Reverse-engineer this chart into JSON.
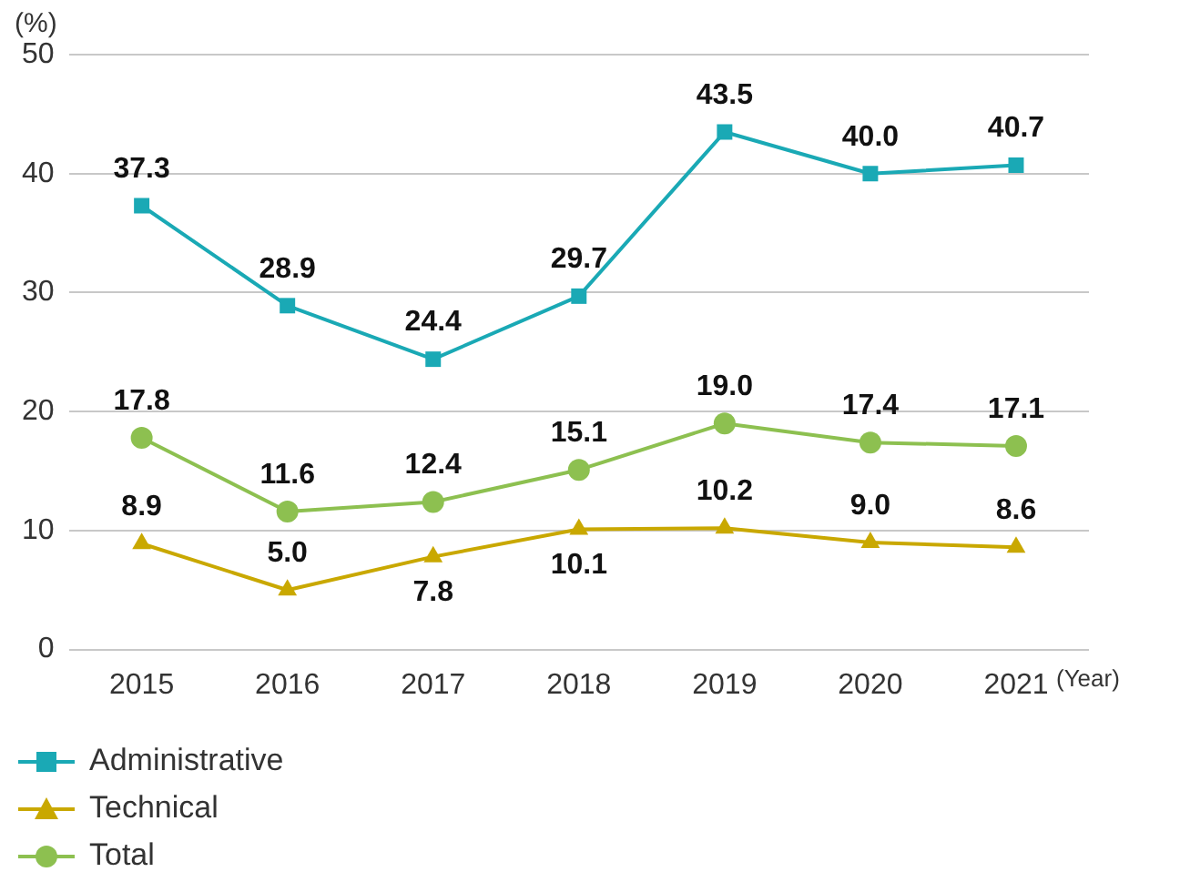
{
  "chart_data": {
    "type": "line",
    "xlabel": "(Year)",
    "ylabel": "(%)",
    "categories": [
      "2015",
      "2016",
      "2017",
      "2018",
      "2019",
      "2020",
      "2021"
    ],
    "series": [
      {
        "name": "Administrative",
        "color": "#1aa9b5",
        "marker": "square",
        "values": [
          37.3,
          28.9,
          24.4,
          29.7,
          43.5,
          40.0,
          40.7
        ],
        "value_labels": [
          "37.3",
          "28.9",
          "24.4",
          "29.7",
          "43.5",
          "40.0",
          "40.7"
        ]
      },
      {
        "name": "Technical",
        "color": "#c9a800",
        "marker": "triangle",
        "values": [
          8.9,
          5.0,
          7.8,
          10.1,
          10.2,
          9.0,
          8.6
        ],
        "value_labels": [
          "8.9",
          "5.0",
          "7.8",
          "10.1",
          "10.2",
          "9.0",
          "8.6"
        ]
      },
      {
        "name": "Total",
        "color": "#8dc050",
        "marker": "circle",
        "values": [
          17.8,
          11.6,
          12.4,
          15.1,
          19.0,
          17.4,
          17.1
        ],
        "value_labels": [
          "17.8",
          "11.6",
          "12.4",
          "15.1",
          "19.0",
          "17.4",
          "17.1"
        ]
      }
    ],
    "ylim": [
      0,
      50
    ],
    "yticks": [
      0,
      10,
      20,
      30,
      40,
      50
    ],
    "grid": "y",
    "legend": "bottom left"
  }
}
